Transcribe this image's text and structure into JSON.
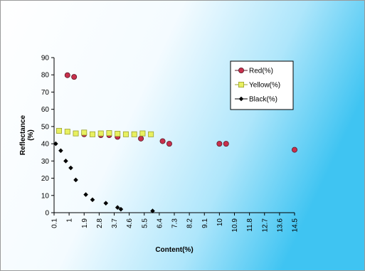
{
  "chart_data": {
    "type": "scatter",
    "xlabel": "Content(%)",
    "ylabel": "Reflectance (%)",
    "ylabel_lines": [
      "Reflectance",
      "(%)"
    ],
    "xlim": [
      0.1,
      14.5
    ],
    "ylim": [
      0,
      90
    ],
    "x_ticks": [
      "0.1",
      "1",
      "1.9",
      "2.8",
      "3.7",
      "4.6",
      "5.5",
      "6.4",
      "7.3",
      "8.2",
      "9.1",
      "10",
      "10.9",
      "11.8",
      "12.7",
      "13.6",
      "14.5"
    ],
    "y_ticks": [
      "0",
      "10",
      "20",
      "30",
      "40",
      "50",
      "60",
      "70",
      "80",
      "90"
    ],
    "legend_position": "top-right",
    "series": [
      {
        "name": "Red(%)",
        "color": "#c8304c",
        "marker": "circle",
        "points": [
          {
            "x": 0.9,
            "y": 79.8
          },
          {
            "x": 1.3,
            "y": 78.8
          },
          {
            "x": 1.9,
            "y": 45.5
          },
          {
            "x": 2.9,
            "y": 45.0
          },
          {
            "x": 3.4,
            "y": 45.0
          },
          {
            "x": 3.9,
            "y": 44.0
          },
          {
            "x": 5.3,
            "y": 43.0
          },
          {
            "x": 6.6,
            "y": 41.5
          },
          {
            "x": 7.0,
            "y": 40.0
          },
          {
            "x": 10.0,
            "y": 40.0
          },
          {
            "x": 10.4,
            "y": 40.0
          },
          {
            "x": 14.5,
            "y": 36.5
          }
        ]
      },
      {
        "name": "Yellow(%)",
        "color": "#e8f060",
        "marker": "square",
        "points": [
          {
            "x": 0.4,
            "y": 47.5
          },
          {
            "x": 0.9,
            "y": 47.0
          },
          {
            "x": 1.4,
            "y": 46.0
          },
          {
            "x": 1.9,
            "y": 46.5
          },
          {
            "x": 2.4,
            "y": 45.5
          },
          {
            "x": 2.9,
            "y": 46.0
          },
          {
            "x": 3.4,
            "y": 46.2
          },
          {
            "x": 3.9,
            "y": 45.8
          },
          {
            "x": 4.4,
            "y": 45.5
          },
          {
            "x": 4.9,
            "y": 45.5
          },
          {
            "x": 5.4,
            "y": 46.0
          },
          {
            "x": 5.9,
            "y": 45.5
          }
        ]
      },
      {
        "name": "Black(%)",
        "color": "#000000",
        "marker": "diamond",
        "points": [
          {
            "x": 0.2,
            "y": 40.0
          },
          {
            "x": 0.5,
            "y": 36.0
          },
          {
            "x": 0.8,
            "y": 30.0
          },
          {
            "x": 1.1,
            "y": 26.0
          },
          {
            "x": 1.4,
            "y": 19.0
          },
          {
            "x": 2.0,
            "y": 10.5
          },
          {
            "x": 2.4,
            "y": 7.5
          },
          {
            "x": 3.2,
            "y": 5.5
          },
          {
            "x": 3.9,
            "y": 3.0
          },
          {
            "x": 4.1,
            "y": 2.0
          },
          {
            "x": 6.0,
            "y": 1.0
          }
        ]
      }
    ]
  }
}
